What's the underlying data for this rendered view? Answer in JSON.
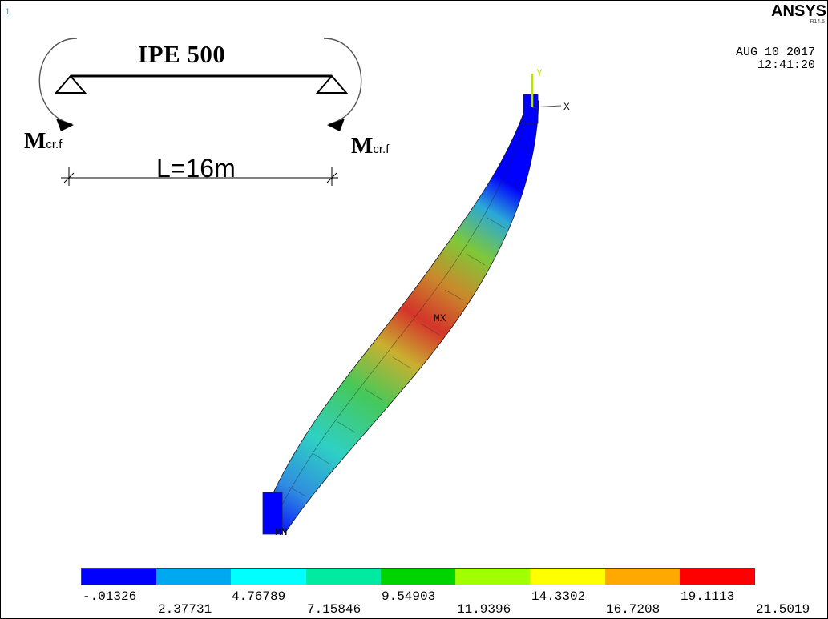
{
  "header": {
    "window_number": "1",
    "product_name": "ANSYS",
    "product_version": "R14.5",
    "date": "AUG 10 2017",
    "time": "12:41:20"
  },
  "sketch": {
    "section": "IPE 500",
    "span": "L=16m",
    "moment_main": "M",
    "moment_sub": "cr.f"
  },
  "triad": {
    "x_label": "X",
    "y_label": "Y"
  },
  "markers": {
    "max": "MX",
    "min": "MN"
  },
  "legend": {
    "colors": [
      "#0000ff",
      "#00a8f0",
      "#00ffff",
      "#00eaa0",
      "#00d400",
      "#a0ff00",
      "#ffff00",
      "#ffa800",
      "#ff0000"
    ],
    "top_labels": [
      "-.01326",
      "4.76789",
      "9.54903",
      "14.3302",
      "19.1113"
    ],
    "bottom_labels": [
      "2.37731",
      "7.15846",
      "11.9396",
      "16.7208",
      "21.5019"
    ]
  }
}
